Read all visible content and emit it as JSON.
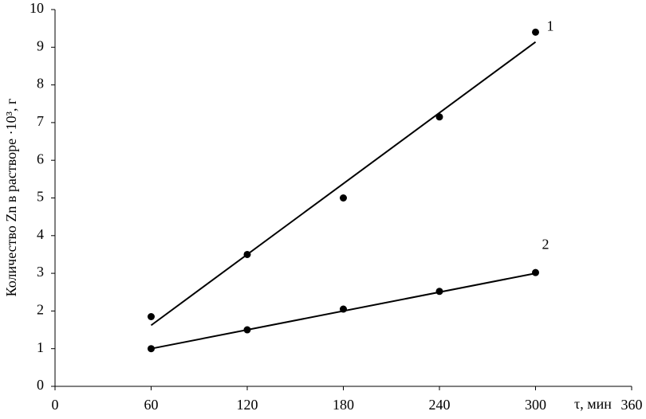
{
  "chart_data": {
    "type": "scatter",
    "x_label": "τ, мин",
    "y_label": "Количество Zn в растворе ·10³, г",
    "xlim": [
      0,
      360
    ],
    "xticks": [
      0,
      60,
      120,
      180,
      240,
      300,
      360
    ],
    "ylim": [
      0,
      10
    ],
    "yticks": [
      0,
      1,
      2,
      3,
      4,
      5,
      6,
      7,
      8,
      9,
      10
    ],
    "grid": false,
    "series": [
      {
        "name": "1",
        "color": "#000000",
        "x": [
          60,
          120,
          180,
          240,
          300
        ],
        "values": [
          1.85,
          3.5,
          5.0,
          7.15,
          9.4
        ],
        "trend": {
          "x": [
            60,
            300
          ],
          "values": [
            1.62,
            9.14
          ]
        }
      },
      {
        "name": "2",
        "color": "#000000",
        "x": [
          60,
          120,
          180,
          240,
          300
        ],
        "values": [
          1.0,
          1.5,
          2.05,
          2.52,
          3.02
        ],
        "trend": {
          "x": [
            60,
            300
          ],
          "values": [
            1.0,
            3.0
          ]
        }
      }
    ]
  }
}
